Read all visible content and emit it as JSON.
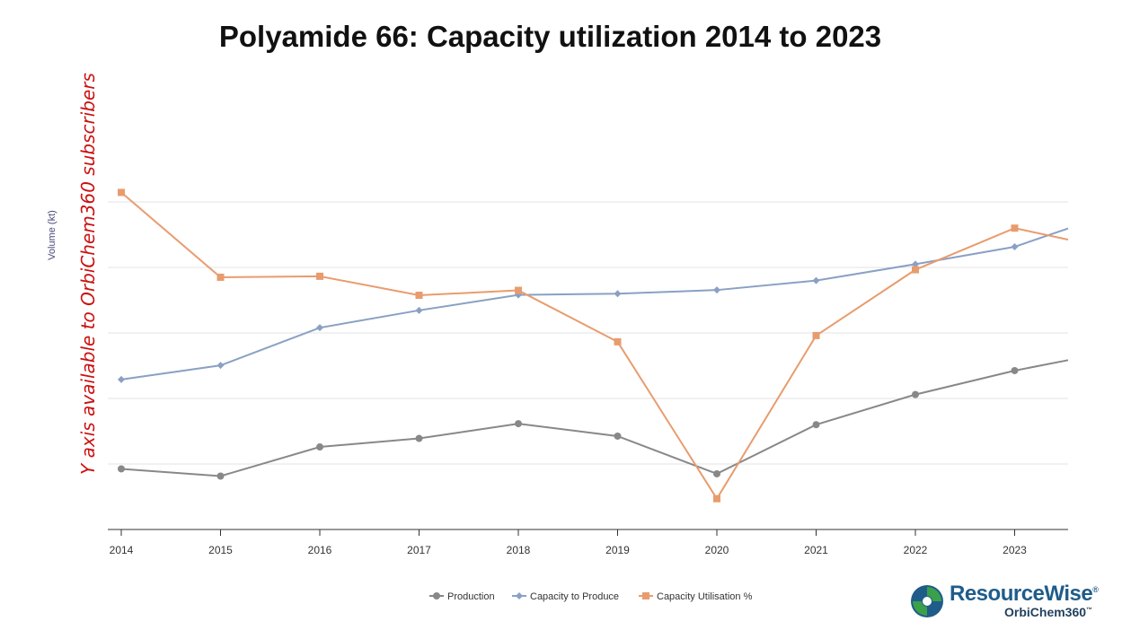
{
  "chart_data": {
    "type": "line",
    "title": "Polyamide 66: Capacity utilization 2014 to 2023",
    "ylabel": "Volume (kt)",
    "xlabel": "",
    "watermark": "Y axis available to OrbiChem360 subscribers",
    "categories": [
      "2014",
      "2015",
      "2016",
      "2017",
      "2018",
      "2019",
      "2020",
      "2021",
      "2022",
      "2023"
    ],
    "ylim": [
      0,
      100
    ],
    "gridlines": [
      20,
      40,
      60,
      80
    ],
    "legend_position": "bottom-center",
    "series": [
      {
        "name": "Production",
        "color": "#888888",
        "marker": "circle",
        "values": [
          18.5,
          16.3,
          25.2,
          27.8,
          32.3,
          28.5,
          17.0,
          32.0,
          41.2,
          48.5
        ],
        "end_value": 51.7
      },
      {
        "name": "Capacity to Produce",
        "color": "#8aa0c4",
        "marker": "diamond",
        "values": [
          45.8,
          50.1,
          61.6,
          66.9,
          71.6,
          72.0,
          73.1,
          76.0,
          81.0,
          86.3
        ],
        "end_value": 91.9
      },
      {
        "name": "Capacity Utilisation %",
        "color": "#e89c6e",
        "marker": "square",
        "values": [
          102.9,
          77.0,
          77.3,
          71.5,
          73.0,
          57.3,
          9.4,
          59.2,
          79.3,
          92.0
        ],
        "end_value": 88.5
      }
    ]
  },
  "logo": {
    "brand_main": "Resource",
    "brand_accent": "Wise",
    "registered": "®",
    "sub": "OrbiChem360",
    "trademark": "™"
  }
}
